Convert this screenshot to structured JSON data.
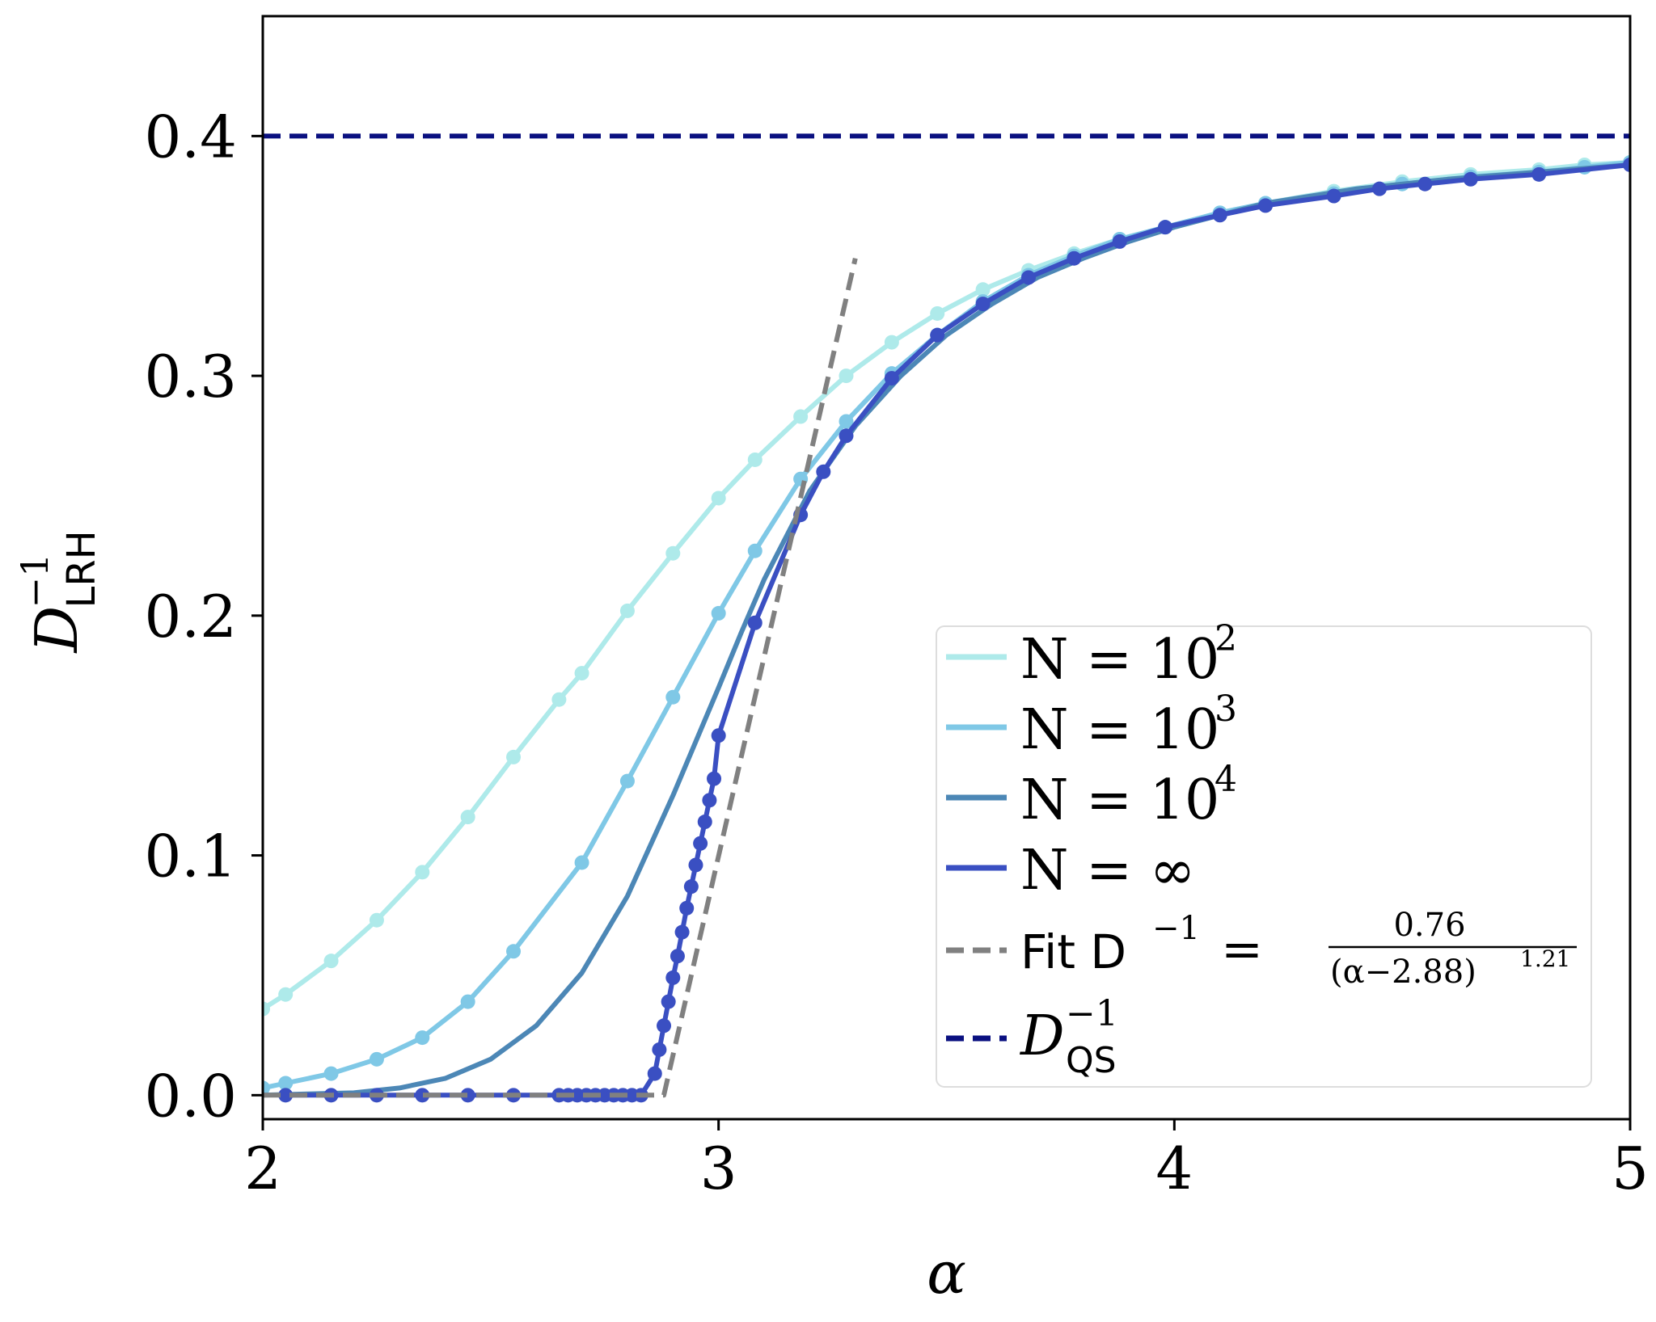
{
  "chart_data": {
    "type": "line",
    "xlabel": "α",
    "ylabel": {
      "base": "D",
      "sup": "−1",
      "sub": "LRH"
    },
    "xlim": [
      2,
      5
    ],
    "ylim": [
      -0.01,
      0.45
    ],
    "xticks": [
      {
        "value": 2,
        "label": "2"
      },
      {
        "value": 3,
        "label": "3"
      },
      {
        "value": 4,
        "label": "4"
      },
      {
        "value": 5,
        "label": "5"
      }
    ],
    "yticks": [
      {
        "value": 0.0,
        "label": "0.0"
      },
      {
        "value": 0.1,
        "label": "0.1"
      },
      {
        "value": 0.2,
        "label": "0.2"
      },
      {
        "value": 0.3,
        "label": "0.3"
      },
      {
        "value": 0.4,
        "label": "0.4"
      }
    ],
    "grid": false,
    "legend_position": "lower-right",
    "series": [
      {
        "name": "N = 10^2",
        "legend": {
          "pre": "N = 10",
          "sup": "2"
        },
        "color": "#aeeaea",
        "markers": true,
        "x": [
          2.0,
          2.05,
          2.15,
          2.25,
          2.35,
          2.45,
          2.55,
          2.65,
          2.7,
          2.8,
          2.9,
          3.0,
          3.08,
          3.18,
          3.28,
          3.38,
          3.48,
          3.58,
          3.68,
          3.78,
          3.88,
          3.98,
          4.1,
          4.2,
          4.35,
          4.5,
          4.65,
          4.8,
          4.9,
          5.0
        ],
        "y": [
          0.036,
          0.042,
          0.056,
          0.073,
          0.093,
          0.116,
          0.141,
          0.165,
          0.176,
          0.202,
          0.226,
          0.249,
          0.265,
          0.283,
          0.3,
          0.314,
          0.326,
          0.336,
          0.344,
          0.351,
          0.357,
          0.362,
          0.368,
          0.372,
          0.377,
          0.381,
          0.384,
          0.386,
          0.388,
          0.389
        ]
      },
      {
        "name": "N = 10^3",
        "legend": {
          "pre": "N = 10",
          "sup": "3"
        },
        "color": "#7fc8e6",
        "markers": true,
        "x": [
          2.0,
          2.05,
          2.15,
          2.25,
          2.35,
          2.45,
          2.55,
          2.7,
          2.8,
          2.9,
          3.0,
          3.08,
          3.18,
          3.28,
          3.38,
          3.48,
          3.58,
          3.68,
          3.78,
          3.88,
          3.98,
          4.1,
          4.2,
          4.35,
          4.5,
          4.65,
          4.8,
          4.9,
          5.0
        ],
        "y": [
          0.003,
          0.005,
          0.009,
          0.015,
          0.024,
          0.039,
          0.06,
          0.097,
          0.131,
          0.166,
          0.201,
          0.227,
          0.257,
          0.281,
          0.301,
          0.317,
          0.331,
          0.342,
          0.35,
          0.357,
          0.362,
          0.368,
          0.372,
          0.376,
          0.38,
          0.383,
          0.385,
          0.387,
          0.389
        ]
      },
      {
        "name": "N = 10^4",
        "legend": {
          "pre": "N = 10",
          "sup": "4"
        },
        "color": "#4c87b6",
        "markers": false,
        "x": [
          2.0,
          2.1,
          2.2,
          2.3,
          2.4,
          2.5,
          2.6,
          2.7,
          2.8,
          2.9,
          3.0,
          3.05,
          3.1,
          3.2,
          3.3,
          3.4,
          3.5,
          3.6,
          3.7,
          3.8,
          3.9,
          4.0,
          4.2,
          4.4,
          4.6,
          4.8,
          5.0
        ],
        "y": [
          0.0,
          0.0005,
          0.001,
          0.003,
          0.007,
          0.015,
          0.029,
          0.051,
          0.083,
          0.125,
          0.17,
          0.193,
          0.215,
          0.252,
          0.279,
          0.3,
          0.317,
          0.33,
          0.341,
          0.349,
          0.356,
          0.362,
          0.372,
          0.378,
          0.382,
          0.385,
          0.388
        ]
      },
      {
        "name": "N = ∞",
        "legend": {
          "pre": "N = ∞",
          "sup": ""
        },
        "color": "#3a4fc2",
        "markers": true,
        "x": [
          2.05,
          2.15,
          2.25,
          2.35,
          2.45,
          2.55,
          2.65,
          2.67,
          2.69,
          2.71,
          2.73,
          2.75,
          2.77,
          2.79,
          2.81,
          2.83,
          2.86,
          2.87,
          2.88,
          2.89,
          2.9,
          2.91,
          2.92,
          2.93,
          2.94,
          2.95,
          2.96,
          2.97,
          2.98,
          2.99,
          3.0,
          3.08,
          3.18,
          3.23,
          3.28,
          3.38,
          3.48,
          3.58,
          3.68,
          3.78,
          3.88,
          3.98,
          4.1,
          4.2,
          4.35,
          4.45,
          4.55,
          4.65,
          4.8,
          5.0
        ],
        "y": [
          0.0,
          0.0,
          0.0,
          0.0,
          0.0,
          0.0,
          0.0,
          0.0,
          0.0,
          0.0,
          0.0,
          0.0,
          0.0,
          0.0,
          0.0,
          0.0,
          0.009,
          0.019,
          0.029,
          0.039,
          0.049,
          0.058,
          0.068,
          0.078,
          0.087,
          0.096,
          0.105,
          0.114,
          0.123,
          0.132,
          0.15,
          0.197,
          0.242,
          0.26,
          0.275,
          0.299,
          0.317,
          0.33,
          0.341,
          0.349,
          0.356,
          0.362,
          0.367,
          0.371,
          0.375,
          0.378,
          0.38,
          0.382,
          0.384,
          0.388
        ]
      },
      {
        "name": "Fit",
        "legend": {
          "pre": "Fit D",
          "sup": "−1",
          "eq": "=",
          "frac_num": "0.76",
          "frac_den": "(α−2.88)",
          "frac_den_sup": "1.21"
        },
        "color": "#808080",
        "dashed": true,
        "markers": false,
        "x": [
          2.0,
          2.86,
          2.88,
          3.3
        ],
        "y": [
          0.0,
          0.0,
          0.0,
          0.349
        ]
      },
      {
        "name": "D_QS^-1",
        "legend": {
          "pre": "D",
          "sup": "−1",
          "sub": "QS"
        },
        "color": "#0a1080",
        "dashed": true,
        "markers": false,
        "x": [
          2.0,
          5.0
        ],
        "y": [
          0.4,
          0.4
        ]
      }
    ]
  }
}
